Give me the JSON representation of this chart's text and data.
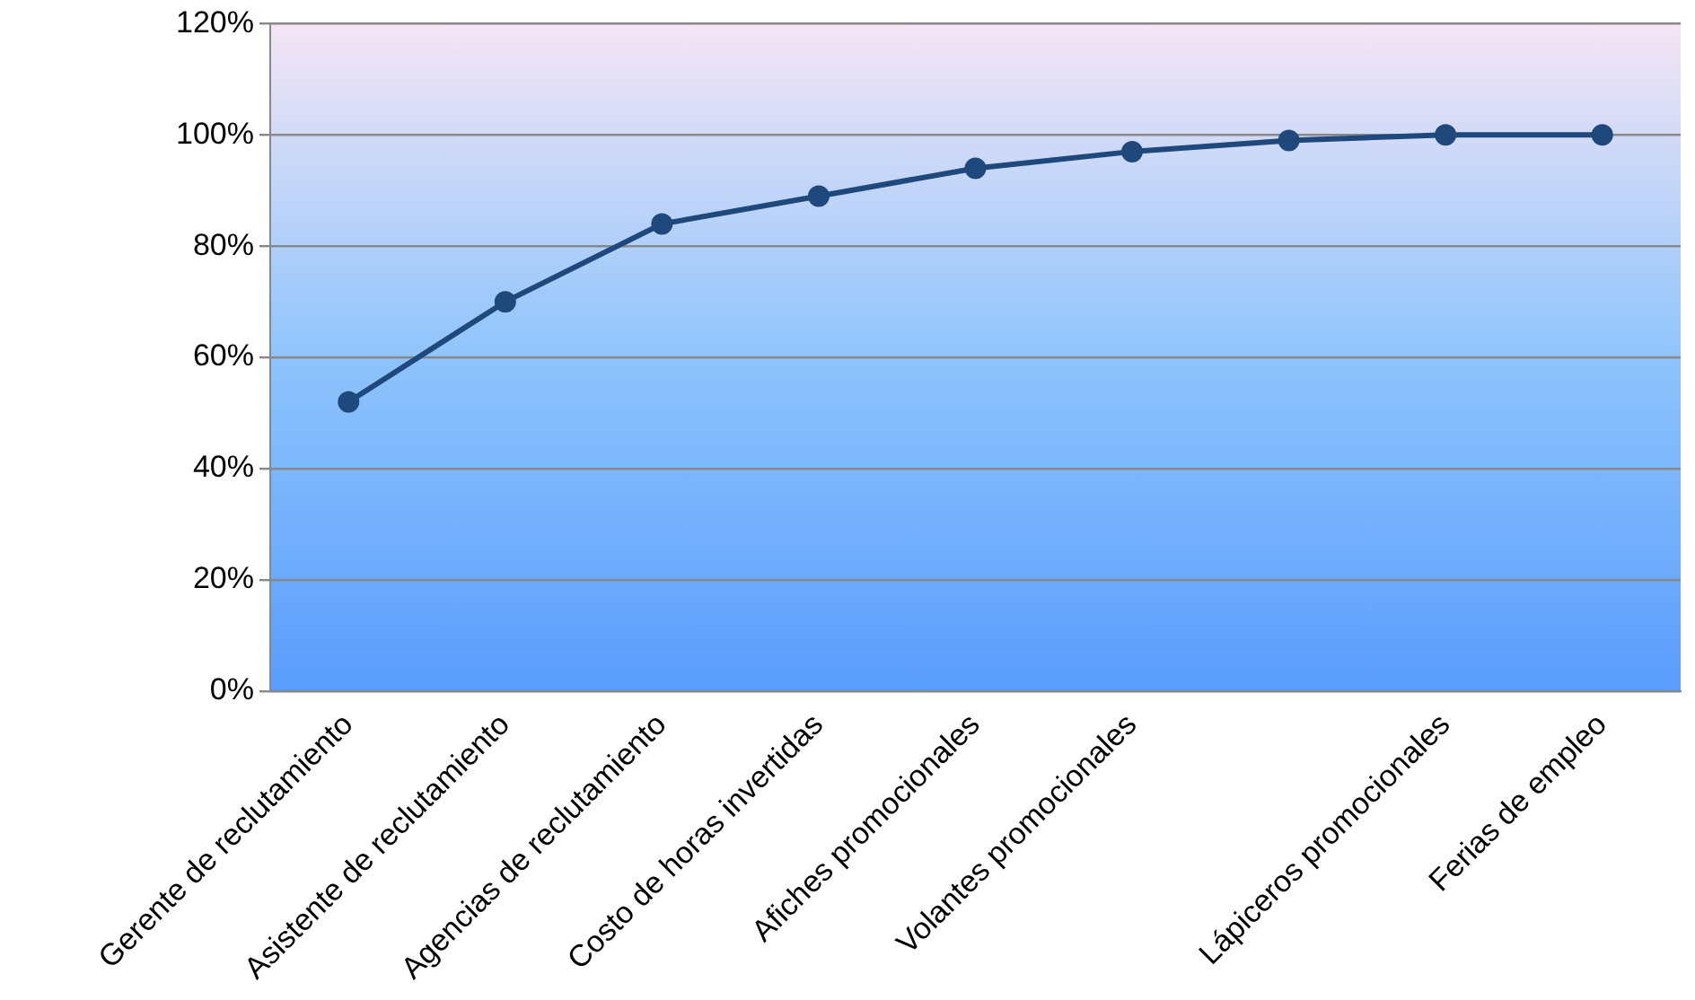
{
  "chart_data": {
    "type": "line",
    "categories": [
      "Gerente de reclutamiento",
      "Asistente de reclutamiento",
      "Agencias de reclutamiento",
      "Costo de horas invertidas",
      "Afiches promocionales",
      "Volantes promocionales",
      null,
      "Lápiceros promocionales",
      "Ferias de empleo"
    ],
    "series": [
      {
        "color": "#1f497d",
        "values": [
          0.52,
          0.7,
          0.84,
          0.89,
          0.94,
          0.97,
          0.99,
          1.0,
          1.0
        ]
      }
    ],
    "ylim": [
      0,
      1.2
    ],
    "yticks": [
      {
        "value": 0,
        "label": "0%"
      },
      {
        "value": 0.2,
        "label": "20%"
      },
      {
        "value": 0.4,
        "label": "40%"
      },
      {
        "value": 0.6,
        "label": "60%"
      },
      {
        "value": 0.8,
        "label": "80%"
      },
      {
        "value": 1.0,
        "label": "100%"
      },
      {
        "value": 1.2,
        "label": "120%"
      }
    ],
    "grid": "y",
    "marker": "circle",
    "line_style": "solid",
    "legend": false
  }
}
